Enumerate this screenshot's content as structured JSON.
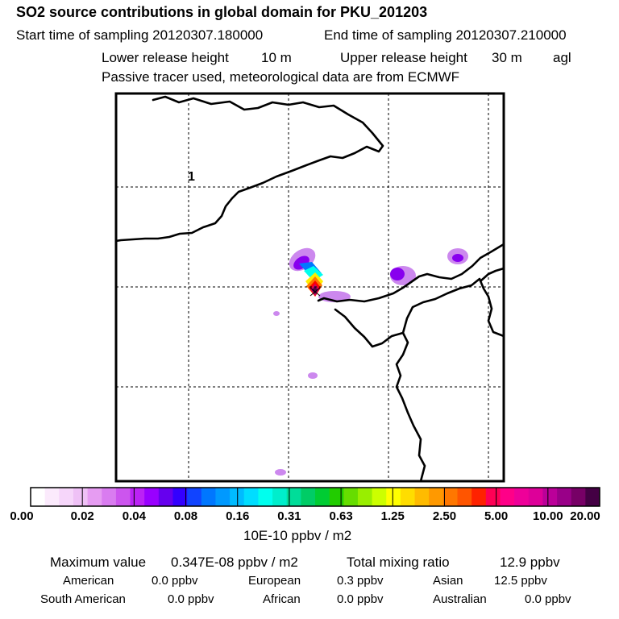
{
  "header": {
    "title": "SO2 source contributions in global domain for PKU_201203",
    "start_label": "Start time of sampling 20120307.180000",
    "end_label": "End time of sampling 20120307.210000",
    "lower_label": "Lower release height",
    "lower_value": "10 m",
    "upper_label": "Upper release height",
    "upper_value": "30 m",
    "agl": "agl",
    "tracer_line": "Passive tracer used, meteorological data are from ECMWF"
  },
  "map": {
    "grid_label": "1",
    "colors": {
      "coast": "#000000",
      "grid": "#000000",
      "frame": "#000000"
    },
    "plume": {
      "cells": [
        {
          "c": "#cc88ee",
          "v": 0.03
        },
        {
          "c": "#8800ee",
          "v": 0.05
        },
        {
          "c": "#0077ff",
          "v": 0.12
        },
        {
          "c": "#00ffee",
          "v": 0.2
        },
        {
          "c": "#ffee00",
          "v": 1.5
        },
        {
          "c": "#ff7700",
          "v": 3.0
        },
        {
          "c": "#ff0000",
          "v": 5.0
        },
        {
          "c": "#cc0066",
          "v": 12.0
        },
        {
          "c": "#550044",
          "v": 20.0
        }
      ]
    }
  },
  "colorbar": {
    "colors": [
      "#ffffff",
      "#fbeafc",
      "#f6d6fa",
      "#efc1f6",
      "#e69cf2",
      "#d97cf0",
      "#cc55ee",
      "#bb22f5",
      "#9900ff",
      "#6600ee",
      "#3300ff",
      "#1144ff",
      "#0077ff",
      "#0099ff",
      "#00bbff",
      "#00ddff",
      "#00ffee",
      "#00eecc",
      "#00dd99",
      "#00cc66",
      "#00cc33",
      "#22cc00",
      "#66dd00",
      "#99ee00",
      "#ccff00",
      "#ffff00",
      "#ffdd00",
      "#ffbb00",
      "#ff9900",
      "#ff7700",
      "#ff5500",
      "#ff2200",
      "#ff0055",
      "#ff0088",
      "#ee0099",
      "#dd0099",
      "#bb0099",
      "#990088",
      "#770066",
      "#440044"
    ],
    "tick_labels": [
      "0.00",
      "0.02",
      "0.04",
      "0.08",
      "0.16",
      "0.31",
      "0.63",
      "1.25",
      "2.50",
      "5.00",
      "10.00",
      "20.00"
    ],
    "unit": "10E-10 ppbv / m2"
  },
  "footer": {
    "max_label": "Maximum value",
    "max_value": "0.347E-08 ppbv / m2",
    "total_label": "Total mixing ratio",
    "total_value": "12.9 ppbv",
    "regions": [
      {
        "name": "American",
        "value": "0.0 ppbv"
      },
      {
        "name": "European",
        "value": "0.3 ppbv"
      },
      {
        "name": "Asian",
        "value": "12.5 ppbv"
      },
      {
        "name": "South American",
        "value": "0.0 ppbv"
      },
      {
        "name": "African",
        "value": "0.0 ppbv"
      },
      {
        "name": "Australian",
        "value": "0.0 ppbv"
      }
    ]
  }
}
